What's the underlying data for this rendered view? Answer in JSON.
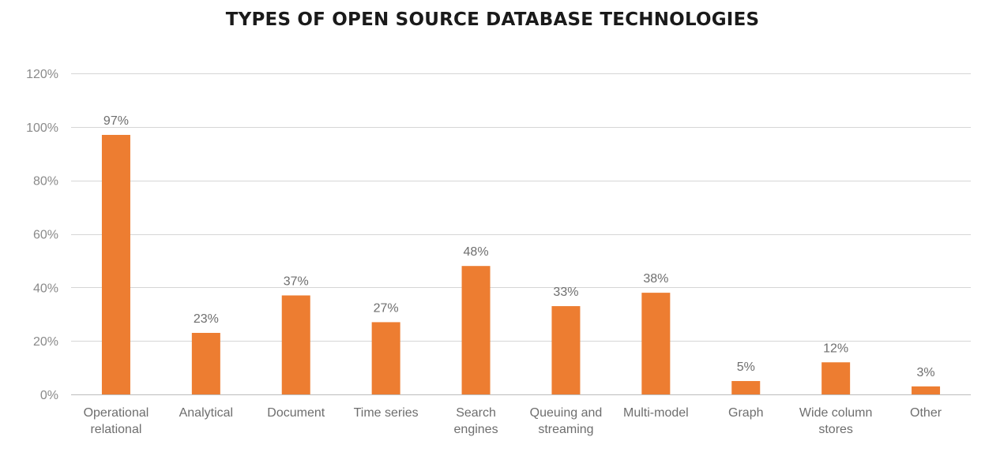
{
  "chart_data": {
    "type": "bar",
    "title": "TYPES OF OPEN SOURCE DATABASE TECHNOLOGIES",
    "xlabel": "",
    "ylabel": "",
    "categories": [
      "Operational relational",
      "Analytical",
      "Document",
      "Time series",
      "Search engines",
      "Queuing and streaming",
      "Multi-model",
      "Graph",
      "Wide column stores",
      "Other"
    ],
    "category_lines": [
      [
        "Operational",
        "relational"
      ],
      [
        "Analytical"
      ],
      [
        "Document"
      ],
      [
        "Time series"
      ],
      [
        "Search",
        "engines"
      ],
      [
        "Queuing and",
        "streaming"
      ],
      [
        "Multi-model"
      ],
      [
        "Graph"
      ],
      [
        "Wide column",
        "stores"
      ],
      [
        "Other"
      ]
    ],
    "values": [
      97,
      23,
      37,
      27,
      48,
      33,
      38,
      5,
      12,
      3
    ],
    "data_labels": [
      "97%",
      "23%",
      "37%",
      "27%",
      "48%",
      "33%",
      "38%",
      "5%",
      "12%",
      "3%"
    ],
    "ylim": [
      0,
      120
    ],
    "yticks": [
      0,
      20,
      40,
      60,
      80,
      100,
      120
    ],
    "ytick_labels": [
      "0%",
      "20%",
      "40%",
      "60%",
      "80%",
      "100%",
      "120%"
    ],
    "grid": true,
    "legend": "none",
    "bar_color": "#ED7D31"
  }
}
